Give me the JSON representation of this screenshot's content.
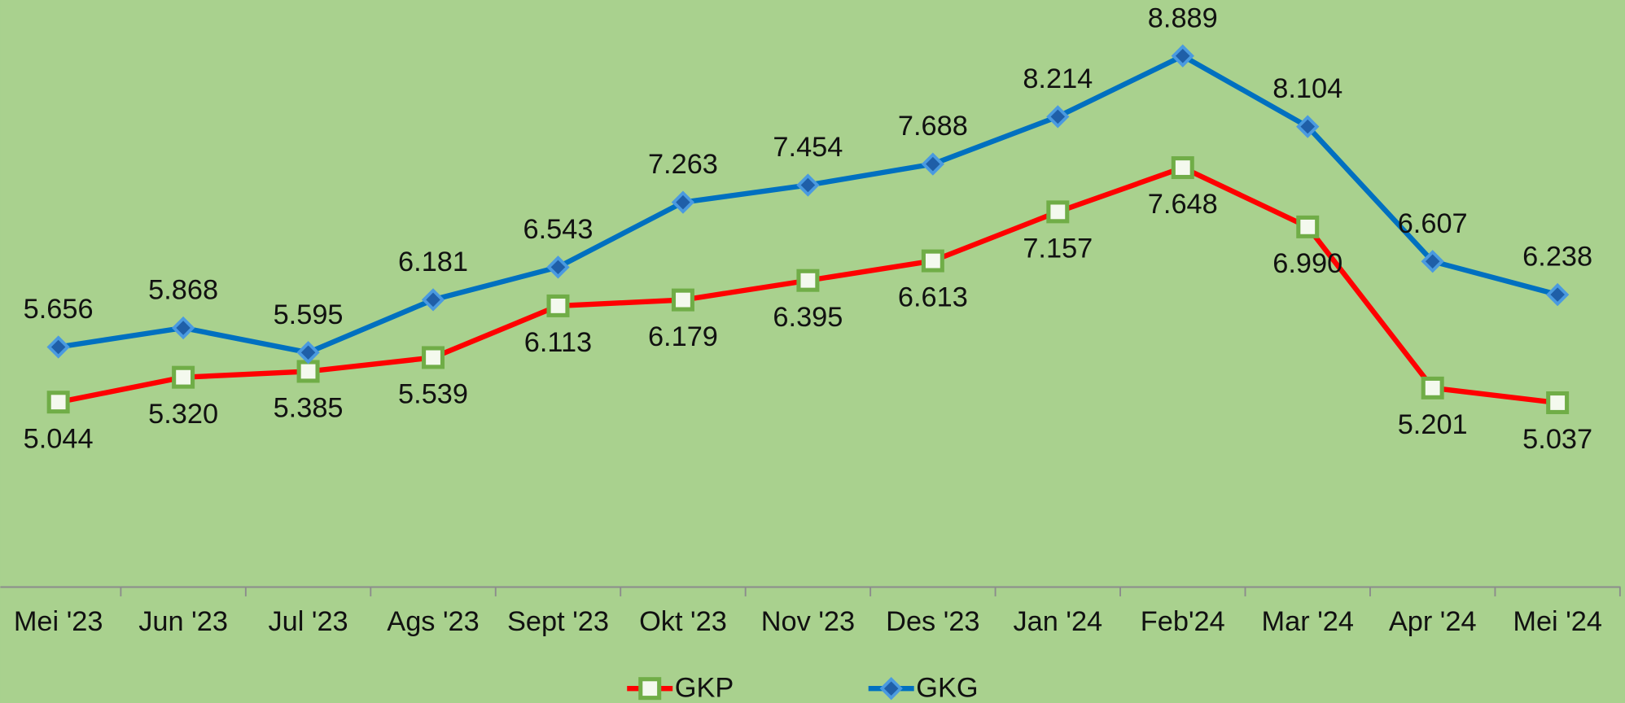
{
  "chart_data": {
    "type": "line",
    "categories": [
      "Mei '23",
      "Jun '23",
      "Jul '23",
      "Ags '23",
      "Sept '23",
      "Okt '23",
      "Nov '23",
      "Des '23",
      "Jan '24",
      "Feb'24",
      "Mar '24",
      "Apr '24",
      "Mei '24"
    ],
    "series": [
      {
        "name": "GKP",
        "color": "#ff0000",
        "values": [
          5.044,
          5.32,
          5.385,
          5.539,
          6.113,
          6.179,
          6.395,
          6.613,
          7.157,
          7.648,
          6.99,
          5.201,
          5.037
        ],
        "value_labels": [
          "5.044",
          "5.320",
          "5.385",
          "5.539",
          "6.113",
          "6.179",
          "6.395",
          "6.613",
          "7.157",
          "7.648",
          "6.990",
          "5.201",
          "5.037"
        ]
      },
      {
        "name": "GKG",
        "color": "#0070c0",
        "values": [
          5.656,
          5.868,
          5.595,
          6.181,
          6.543,
          7.263,
          7.454,
          7.688,
          8.214,
          8.889,
          8.104,
          6.607,
          6.238
        ],
        "value_labels": [
          "5.656",
          "5.868",
          "5.595",
          "6.181",
          "6.543",
          "7.263",
          "7.454",
          "7.688",
          "8.214",
          "8.889",
          "8.104",
          "6.607",
          "6.238"
        ]
      }
    ],
    "legend": "bottom"
  }
}
